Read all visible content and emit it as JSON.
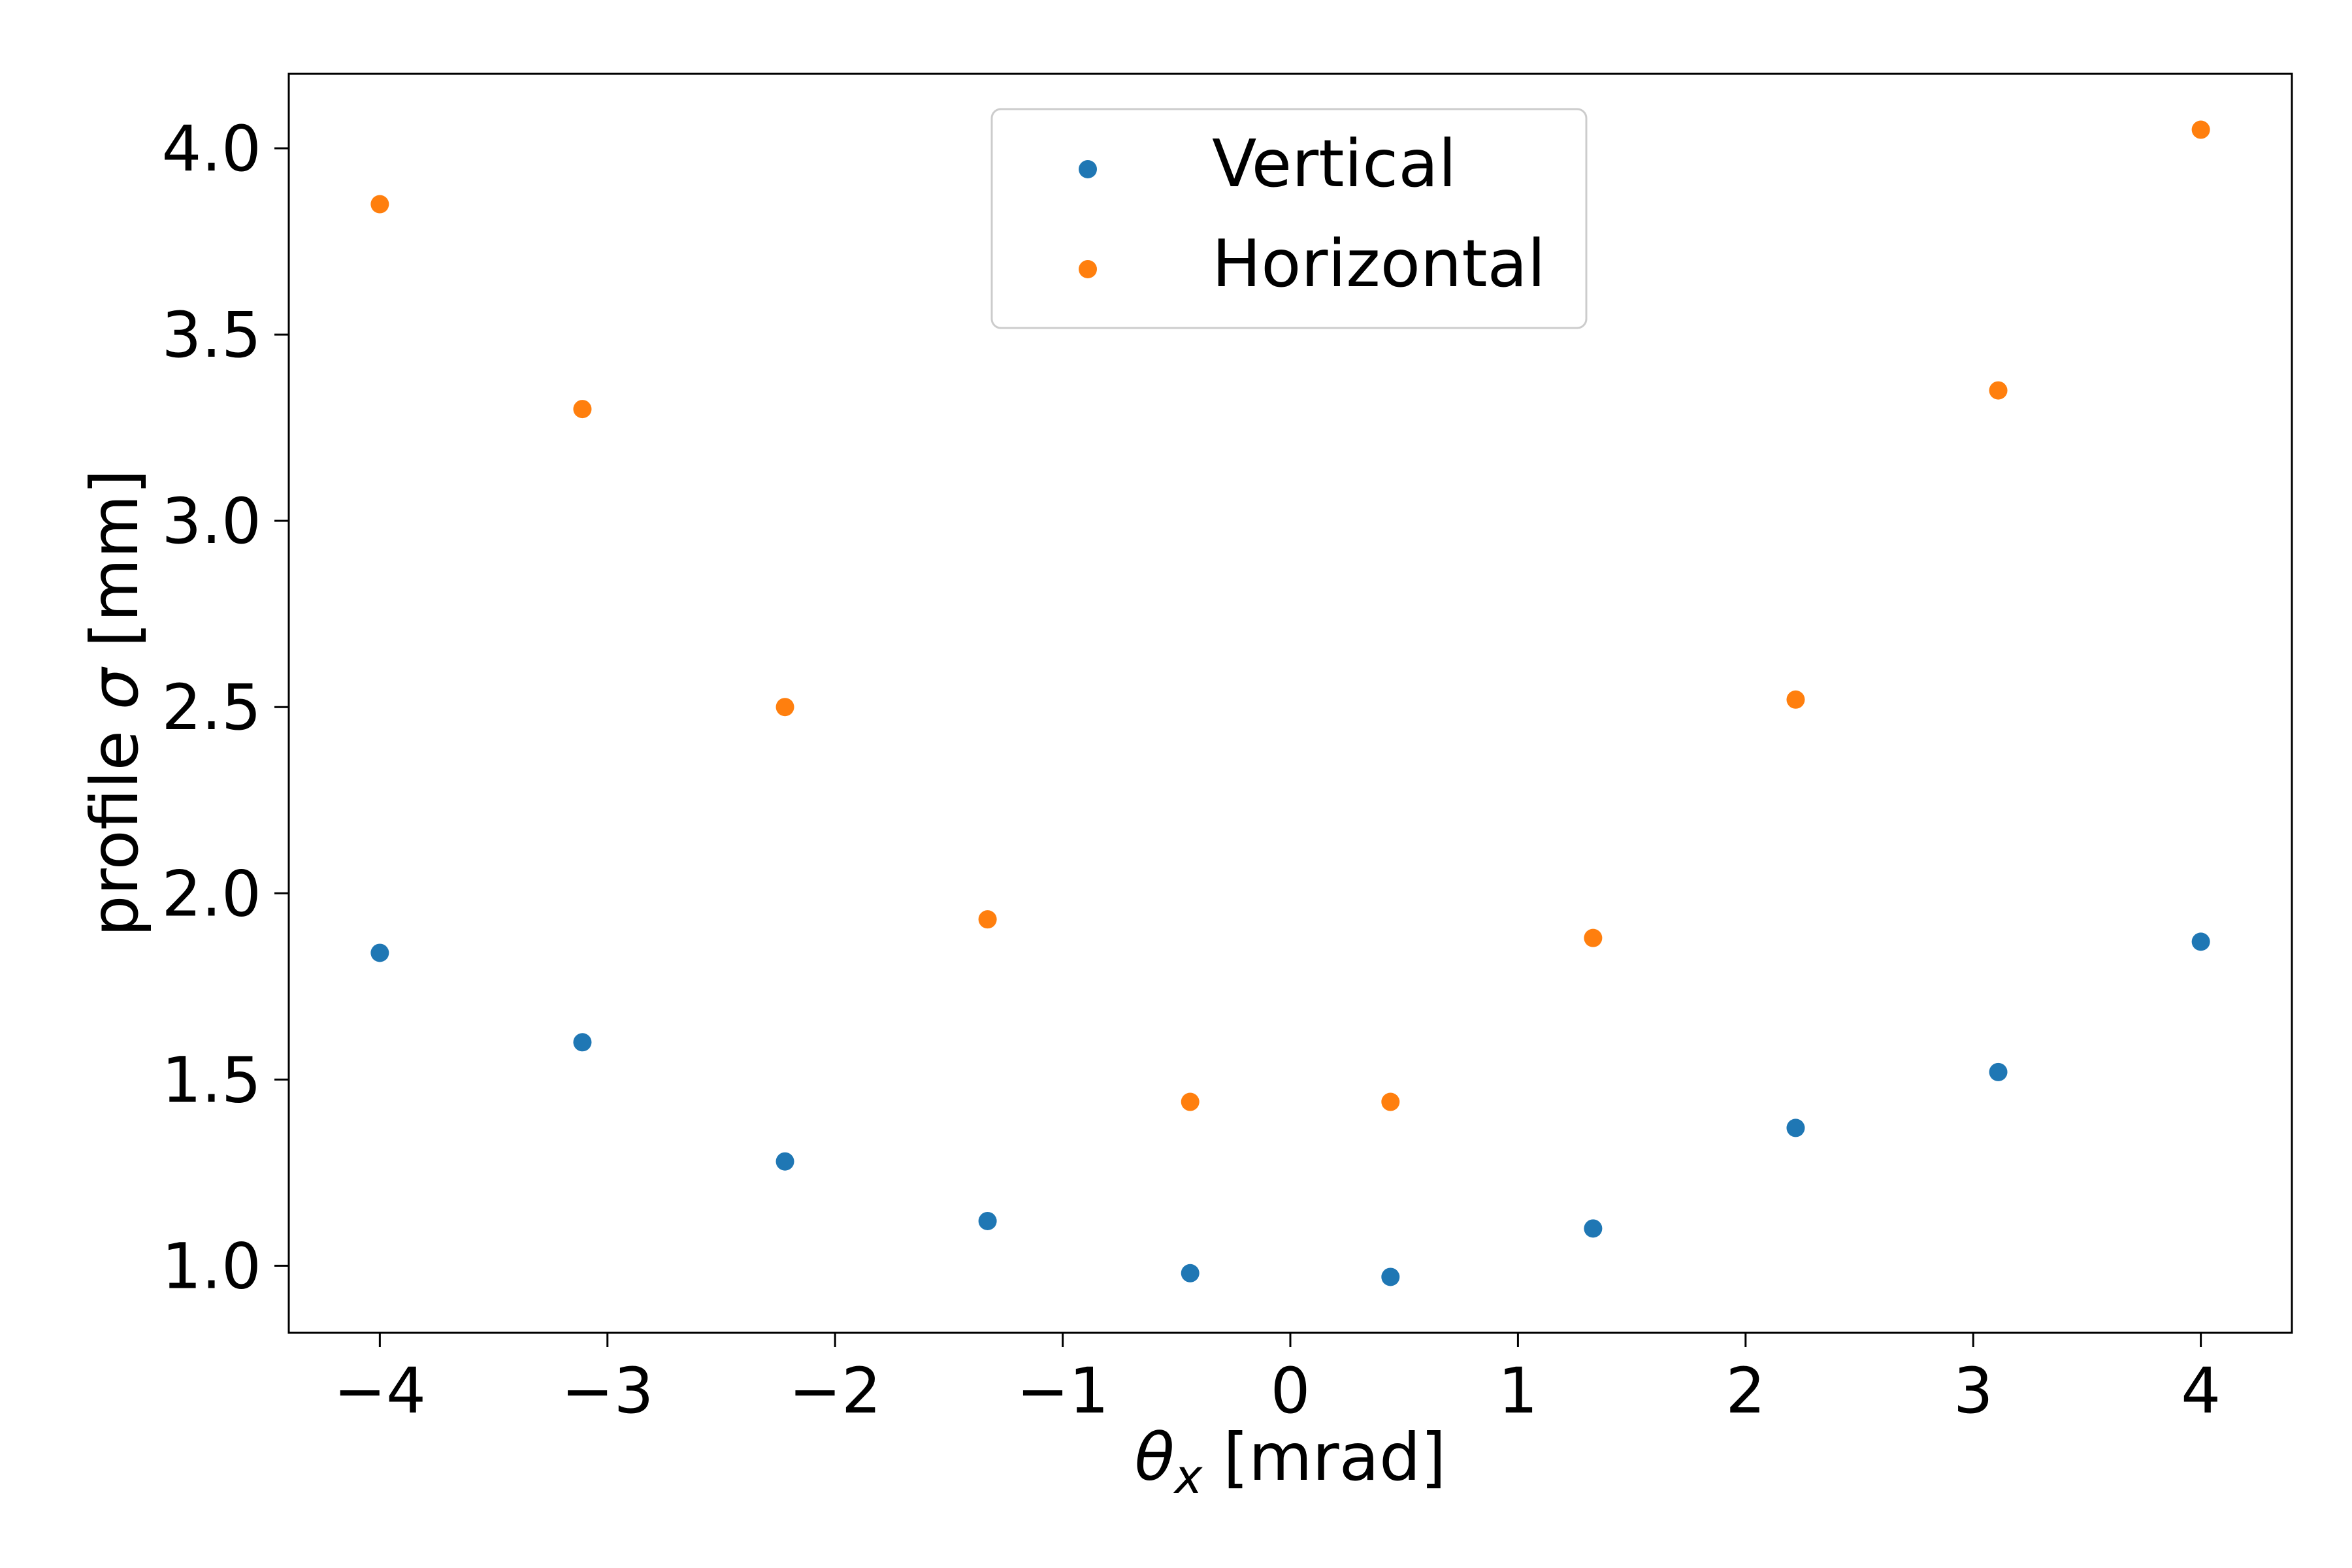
{
  "chart_data": {
    "type": "scatter",
    "xlabel": {
      "symbol": "θ",
      "subscript": "x",
      "unit": " [mrad]"
    },
    "ylabel": {
      "prefix": "profile ",
      "symbol": "σ",
      "unit": " [mm]"
    },
    "xlim": [
      -4.4,
      4.4
    ],
    "ylim": [
      0.82,
      4.2
    ],
    "xticks": [
      -4,
      -3,
      -2,
      -1,
      0,
      1,
      2,
      3,
      4
    ],
    "xtick_labels": [
      "−4",
      "−3",
      "−2",
      "−1",
      "0",
      "1",
      "2",
      "3",
      "4"
    ],
    "yticks": [
      1.0,
      1.5,
      2.0,
      2.5,
      3.0,
      3.5,
      4.0
    ],
    "ytick_labels": [
      "1.0",
      "1.5",
      "2.0",
      "2.5",
      "3.0",
      "3.5",
      "4.0"
    ],
    "grid": false,
    "legend_position": "upper-center",
    "x": [
      -4.0,
      -3.11,
      -2.22,
      -1.33,
      -0.44,
      0.44,
      1.33,
      2.22,
      3.11,
      4.0
    ],
    "series": [
      {
        "name": "Vertical",
        "color": "#1f77b4",
        "values": [
          1.84,
          1.6,
          1.28,
          1.12,
          0.98,
          0.97,
          1.1,
          1.37,
          1.52,
          1.87
        ]
      },
      {
        "name": "Horizontal",
        "color": "#ff7f0e",
        "values": [
          3.85,
          3.3,
          2.5,
          1.93,
          1.44,
          1.44,
          1.88,
          2.52,
          3.35,
          4.05
        ]
      }
    ]
  }
}
